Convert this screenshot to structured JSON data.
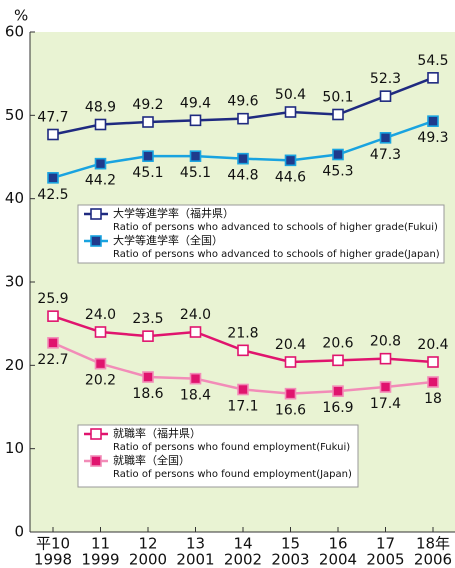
{
  "chart_data": {
    "type": "line",
    "y_unit": "%",
    "categories": [
      "1998",
      "1999",
      "2000",
      "2001",
      "2002",
      "2003",
      "2004",
      "2005",
      "2006"
    ],
    "era_labels": [
      "平10",
      "11",
      "12",
      "13",
      "14",
      "15",
      "16",
      "17",
      "18年"
    ],
    "ylim": [
      0,
      60
    ],
    "yticks": [
      0,
      10,
      20,
      30,
      40,
      50,
      60
    ],
    "series": [
      {
        "name": "大学等進学率（福井県）",
        "name_en": "Ratio of persons who advanced to schools of higher grade(Fukui)",
        "color": "#1f2a80",
        "marker_fill": "#ffffff",
        "marker_edge": "#1f2a80",
        "values": [
          47.7,
          48.9,
          49.2,
          49.4,
          49.6,
          50.4,
          50.1,
          52.3,
          54.5
        ]
      },
      {
        "name": "大学等進学率（全国）",
        "name_en": "Ratio of persons who advanced to schools of higher grade(Japan)",
        "color": "#19a3e0",
        "marker_fill": "#1f3a8c",
        "marker_edge": "#19a3e0",
        "values": [
          42.5,
          44.2,
          45.1,
          45.1,
          44.8,
          44.6,
          45.3,
          47.3,
          49.3
        ]
      },
      {
        "name": "就職率（福井県）",
        "name_en": "Ratio of persons who found employment(Fukui)",
        "color": "#e0146e",
        "marker_fill": "#ffffff",
        "marker_edge": "#e0146e",
        "values": [
          25.9,
          24,
          23.5,
          24,
          21.8,
          20.4,
          20.6,
          20.8,
          20.4
        ],
        "value_labels": [
          "25.9",
          "24.0",
          "23.5",
          "24.0",
          "21.8",
          "20.4",
          "20.6",
          "20.8",
          "20.4"
        ]
      },
      {
        "name": "就職率（全国）",
        "name_en": "Ratio of persons who found employment(Japan)",
        "color": "#f28cb8",
        "marker_fill": "#e0146e",
        "marker_edge": "#f28cb8",
        "values": [
          22.7,
          20.2,
          18.6,
          18.4,
          17.1,
          16.6,
          16.9,
          17.4,
          18
        ]
      }
    ]
  }
}
